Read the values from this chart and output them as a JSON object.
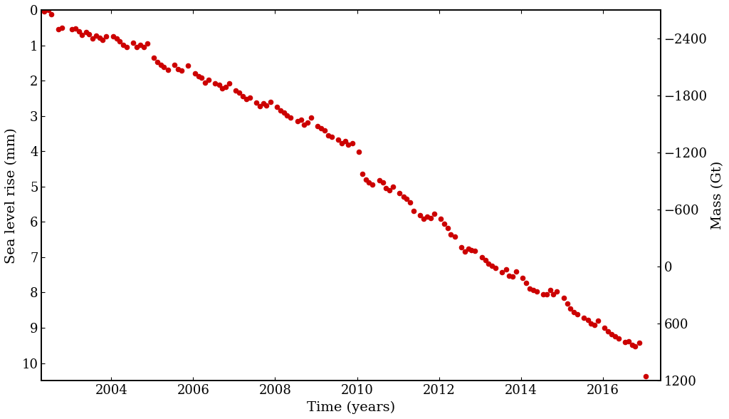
{
  "xlabel": "Time (years)",
  "ylabel_left": "Sea level rise (mm)",
  "ylabel_right": "Mass (Gt)",
  "dot_color": "#cc0000",
  "dot_size": 20,
  "background_color": "#ffffff",
  "xlim": [
    2002.3,
    2017.4
  ],
  "ylim_left": [
    0,
    10.5
  ],
  "ylim_right_top": 1200,
  "ylim_right_bottom": -2700,
  "yticks_left": [
    0,
    1,
    2,
    3,
    4,
    5,
    6,
    7,
    8,
    9,
    10
  ],
  "yticks_right": [
    1200,
    600,
    0,
    -600,
    -1200,
    -1800,
    -2400
  ],
  "xticks": [
    2004,
    2006,
    2008,
    2010,
    2012,
    2014,
    2016
  ],
  "data_x": [
    2002.37,
    2002.46,
    2002.54,
    2002.71,
    2002.79,
    2003.04,
    2003.13,
    2003.21,
    2003.29,
    2003.38,
    2003.46,
    2003.54,
    2003.63,
    2003.71,
    2003.79,
    2003.88,
    2004.04,
    2004.13,
    2004.21,
    2004.29,
    2004.38,
    2004.54,
    2004.63,
    2004.71,
    2004.79,
    2004.88,
    2005.04,
    2005.13,
    2005.21,
    2005.29,
    2005.38,
    2005.54,
    2005.63,
    2005.71,
    2005.88,
    2006.04,
    2006.13,
    2006.21,
    2006.29,
    2006.38,
    2006.54,
    2006.63,
    2006.71,
    2006.79,
    2006.88,
    2007.04,
    2007.13,
    2007.21,
    2007.29,
    2007.38,
    2007.54,
    2007.63,
    2007.71,
    2007.79,
    2007.88,
    2008.04,
    2008.13,
    2008.21,
    2008.29,
    2008.38,
    2008.54,
    2008.63,
    2008.71,
    2008.79,
    2008.88,
    2009.04,
    2009.13,
    2009.21,
    2009.29,
    2009.38,
    2009.54,
    2009.63,
    2009.71,
    2009.79,
    2009.88,
    2010.04,
    2010.13,
    2010.21,
    2010.29,
    2010.38,
    2010.54,
    2010.63,
    2010.71,
    2010.79,
    2010.88,
    2011.04,
    2011.13,
    2011.21,
    2011.29,
    2011.38,
    2011.54,
    2011.63,
    2011.71,
    2011.79,
    2011.88,
    2012.04,
    2012.13,
    2012.21,
    2012.29,
    2012.38,
    2012.54,
    2012.63,
    2012.71,
    2012.79,
    2012.88,
    2013.04,
    2013.13,
    2013.21,
    2013.29,
    2013.38,
    2013.54,
    2013.63,
    2013.71,
    2013.79,
    2013.88,
    2014.04,
    2014.13,
    2014.21,
    2014.29,
    2014.38,
    2014.54,
    2014.63,
    2014.71,
    2014.79,
    2014.88,
    2015.04,
    2015.13,
    2015.21,
    2015.29,
    2015.38,
    2015.54,
    2015.63,
    2015.71,
    2015.79,
    2015.88,
    2016.04,
    2016.13,
    2016.21,
    2016.29,
    2016.38,
    2016.54,
    2016.63,
    2016.71,
    2016.79,
    2016.88,
    2017.04
  ],
  "data_y": [
    0.05,
    0.0,
    0.12,
    0.55,
    0.5,
    0.55,
    0.52,
    0.6,
    0.7,
    0.62,
    0.68,
    0.8,
    0.73,
    0.78,
    0.85,
    0.75,
    0.75,
    0.8,
    0.88,
    0.98,
    1.05,
    0.92,
    1.05,
    0.98,
    1.05,
    0.95,
    1.35,
    1.48,
    1.55,
    1.62,
    1.7,
    1.55,
    1.68,
    1.72,
    1.58,
    1.8,
    1.88,
    1.92,
    2.05,
    1.98,
    2.08,
    2.12,
    2.22,
    2.18,
    2.08,
    2.28,
    2.35,
    2.45,
    2.52,
    2.48,
    2.62,
    2.72,
    2.65,
    2.7,
    2.6,
    2.75,
    2.85,
    2.9,
    2.98,
    3.05,
    3.15,
    3.1,
    3.25,
    3.18,
    3.05,
    3.28,
    3.35,
    3.42,
    3.55,
    3.6,
    3.68,
    3.78,
    3.72,
    3.82,
    3.78,
    4.02,
    4.65,
    4.8,
    4.88,
    4.95,
    4.82,
    4.88,
    5.05,
    5.1,
    5.0,
    5.18,
    5.28,
    5.35,
    5.45,
    5.7,
    5.82,
    5.92,
    5.85,
    5.9,
    5.78,
    5.92,
    6.05,
    6.18,
    6.35,
    6.42,
    6.72,
    6.85,
    6.75,
    6.8,
    6.82,
    7.0,
    7.08,
    7.18,
    7.25,
    7.3,
    7.42,
    7.35,
    7.52,
    7.55,
    7.4,
    7.58,
    7.72,
    7.88,
    7.92,
    7.98,
    8.05,
    8.05,
    7.92,
    8.05,
    7.98,
    8.15,
    8.32,
    8.45,
    8.55,
    8.62,
    8.72,
    8.78,
    8.88,
    8.92,
    8.8,
    9.0,
    9.1,
    9.18,
    9.25,
    9.3,
    9.4,
    9.38,
    9.48,
    9.52,
    9.42,
    10.38
  ],
  "fontsize_label": 14,
  "fontsize_tick": 13,
  "font_family": "DejaVu Serif"
}
